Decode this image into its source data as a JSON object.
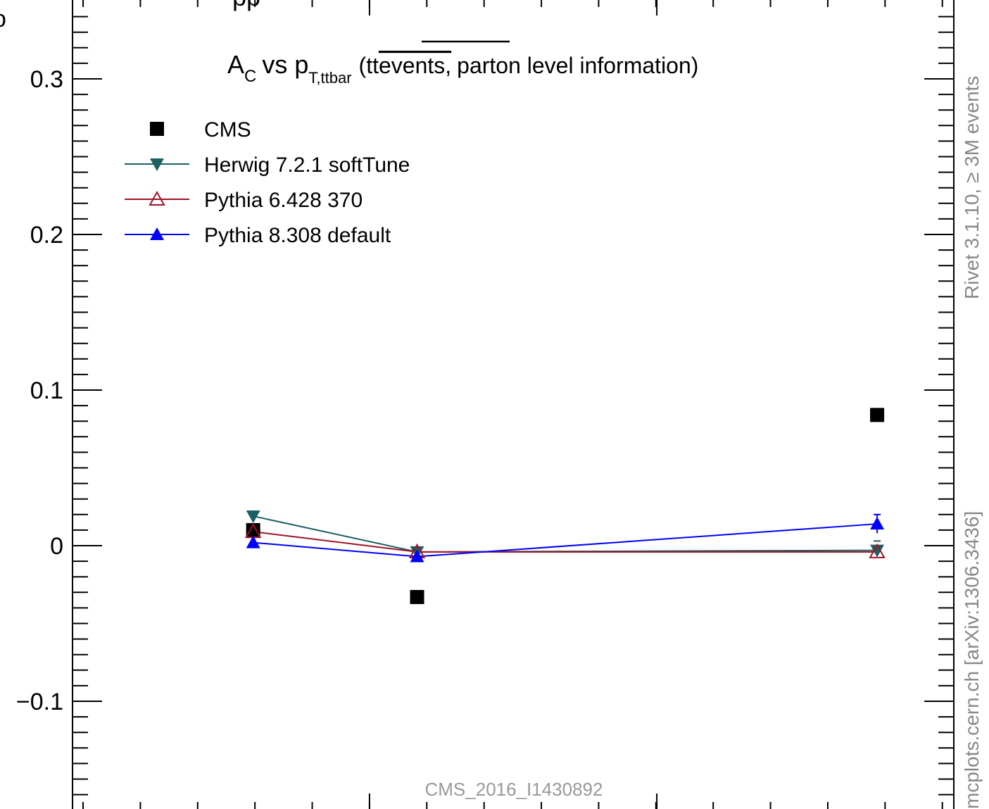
{
  "chart_data": {
    "type": "scatter",
    "title_main": "A",
    "title_main_sub": "C",
    "title_vs": "vs p",
    "title_vs_sub": "T,ttbar",
    "title_rest_pre": "(tt",
    "title_rest_overline": "events,",
    "title_rest_post": "parton level information)",
    "top_partial_text": "pp",
    "left_partial_text": "o",
    "xlabel": "",
    "ylabel": "",
    "ylim": [
      -0.165,
      0.34
    ],
    "yticks": [
      {
        "value": 0.3,
        "label": "0.3"
      },
      {
        "value": 0.2,
        "label": "0.2"
      },
      {
        "value": 0.1,
        "label": "0.1"
      },
      {
        "value": 0.0,
        "label": "0"
      },
      {
        "value": -0.1,
        "label": "−0.1"
      }
    ],
    "xlim": [
      0,
      1
    ],
    "series": [
      {
        "name": "CMS",
        "color": "#000000",
        "marker": "square",
        "line": false,
        "x": [
          0.205,
          0.391,
          0.913
        ],
        "y": [
          0.01,
          -0.033,
          0.084
        ]
      },
      {
        "name": "Herwig 7.2.1 softTune",
        "color": "#1c5f62",
        "marker": "triangle-down",
        "line": true,
        "x": [
          0.205,
          0.391,
          0.913
        ],
        "y": [
          0.019,
          -0.004,
          -0.003
        ]
      },
      {
        "name": "Pythia 6.428 370",
        "color": "#9e1327",
        "marker": "triangle-up-open",
        "line": true,
        "x": [
          0.205,
          0.391,
          0.913
        ],
        "y": [
          0.009,
          -0.004,
          -0.004
        ]
      },
      {
        "name": "Pythia 8.308 default",
        "color": "#0000ff",
        "marker": "triangle-up",
        "line": true,
        "x": [
          0.205,
          0.391,
          0.913
        ],
        "y": [
          0.002,
          -0.007,
          0.014
        ]
      }
    ],
    "side_label_top": "Rivet 3.1.10, ≥ 3M events",
    "side_label_bottom": "mcplots.cern.ch [arXiv:1306.3436]",
    "analysis_label": "CMS_2016_I1430892"
  }
}
